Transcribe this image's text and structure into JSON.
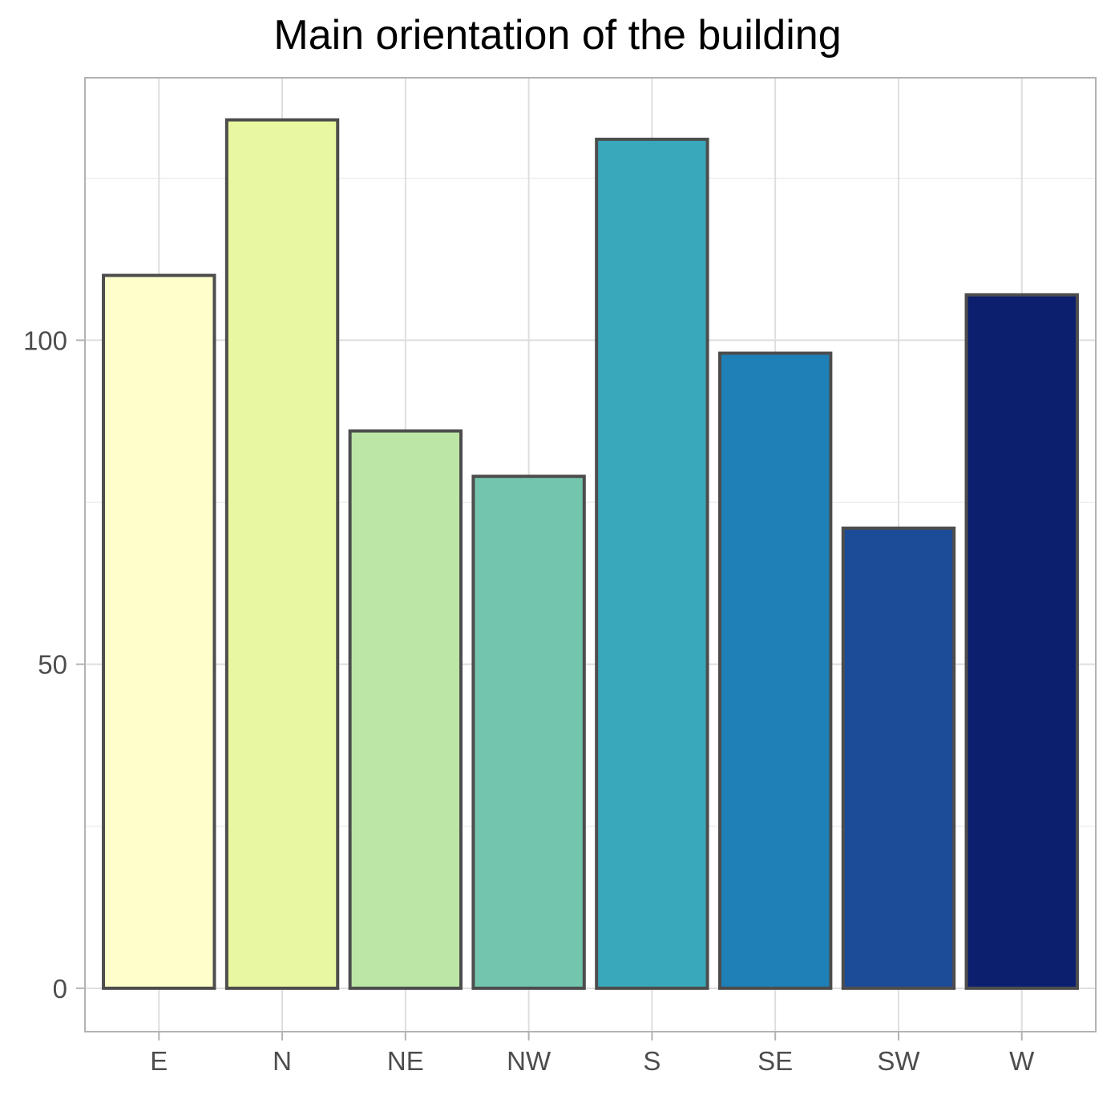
{
  "chart_data": {
    "type": "bar",
    "title": "Main orientation of the building",
    "xlabel": "",
    "ylabel": "",
    "categories": [
      "E",
      "N",
      "NE",
      "NW",
      "S",
      "SE",
      "SW",
      "W"
    ],
    "values": [
      110,
      134,
      86,
      79,
      131,
      98,
      71,
      107
    ],
    "colors": [
      "#FFFFCC",
      "#E7F8A0",
      "#BCE6A5",
      "#73C5AD",
      "#38A8BA",
      "#1E80B6",
      "#1C4B98",
      "#0C1F6F"
    ],
    "bar_edge_color": "#4D4D4D",
    "ylim": [
      -6.7,
      140.5
    ],
    "y_ticks": [
      0,
      50,
      100
    ],
    "y_tick_labels": [
      "0",
      "50",
      "100"
    ],
    "y_minor_gridlines": [
      25,
      75,
      125
    ],
    "grid": true,
    "legend": "none"
  }
}
